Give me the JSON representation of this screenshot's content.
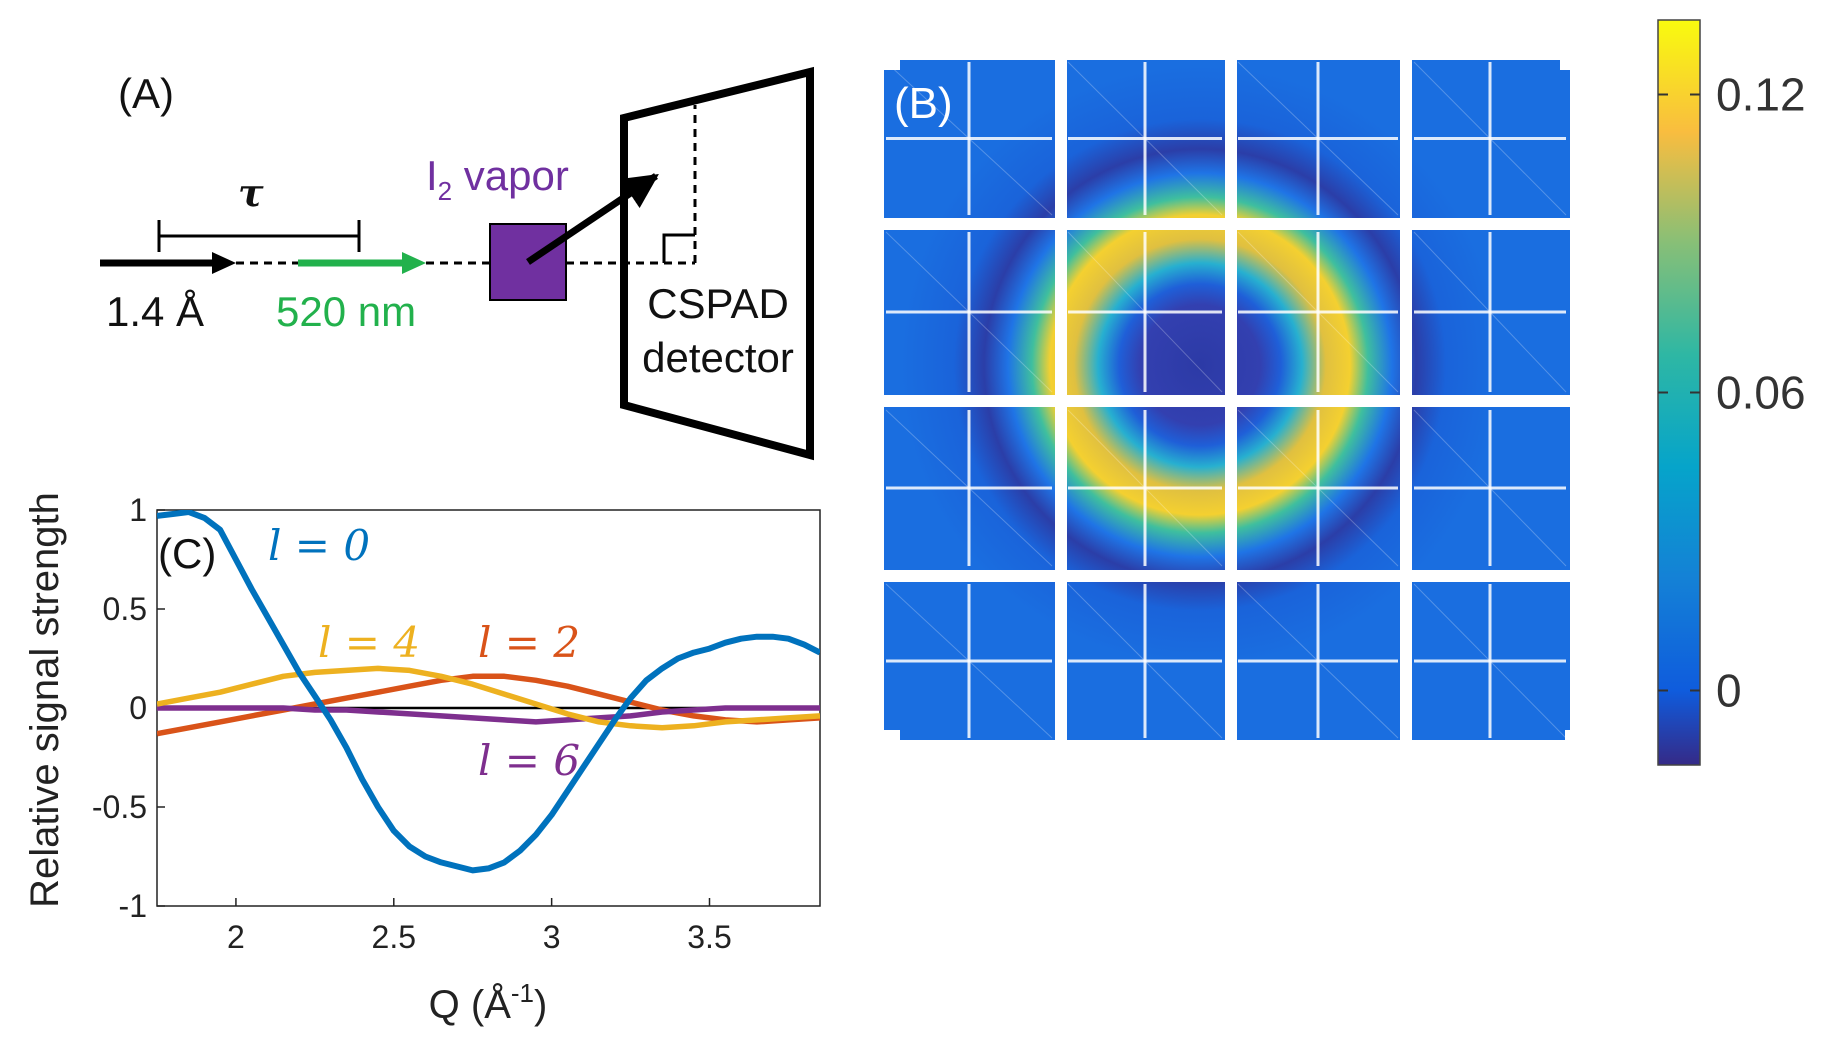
{
  "panels": {
    "a": {
      "label": "(A)",
      "tau": "τ",
      "xray": "1.4 Å",
      "laser": "520 nm",
      "sample_main": "I",
      "sample_sub": "2",
      "sample_rest": " vapor",
      "detector_line1": "CSPAD",
      "detector_line2": "detector"
    },
    "b": {
      "label": "(B)",
      "colorbar_ticks": [
        {
          "value": 0.12,
          "label": "0.12"
        },
        {
          "value": 0.06,
          "label": "0.06"
        },
        {
          "value": 0,
          "label": "0"
        }
      ],
      "colorbar_range": [
        -0.015,
        0.135
      ]
    },
    "c": {
      "label": "(C)"
    }
  },
  "colors": {
    "xray_arrow": "#000000",
    "laser_arrow": "#22b14c",
    "sample": "#7030a0",
    "l0": "#0072bd",
    "l2": "#d95319",
    "l4": "#edb120",
    "l6": "#7e2f8e"
  },
  "chart_data": {
    "type": "line",
    "xlabel": "Q (Å-1)",
    "xlabel_main": "Q (Å",
    "xlabel_sup": "-1",
    "xlabel_end": ")",
    "ylabel": "Relative signal strength",
    "xlim": [
      1.75,
      3.85
    ],
    "ylim": [
      -1,
      1
    ],
    "xticks": [
      2,
      2.5,
      3,
      3.5
    ],
    "yticks": [
      1,
      0.5,
      0,
      -0.5,
      -1
    ],
    "xtick_labels": [
      "2",
      "2.5",
      "3",
      "3.5"
    ],
    "ytick_labels": [
      "1",
      "0.5",
      "0",
      "-0.5",
      "-1"
    ],
    "series": [
      {
        "name": "l = 0",
        "label": "l = 0",
        "color": "#0072bd",
        "x": [
          1.75,
          1.8,
          1.85,
          1.9,
          1.95,
          2.0,
          2.05,
          2.1,
          2.15,
          2.2,
          2.25,
          2.3,
          2.35,
          2.4,
          2.45,
          2.5,
          2.55,
          2.6,
          2.65,
          2.7,
          2.75,
          2.8,
          2.85,
          2.9,
          2.95,
          3.0,
          3.05,
          3.1,
          3.15,
          3.2,
          3.25,
          3.3,
          3.35,
          3.4,
          3.45,
          3.5,
          3.55,
          3.6,
          3.65,
          3.7,
          3.75,
          3.8,
          3.85
        ],
        "y": [
          0.97,
          0.98,
          0.99,
          0.96,
          0.9,
          0.75,
          0.6,
          0.46,
          0.32,
          0.18,
          0.06,
          -0.06,
          -0.2,
          -0.36,
          -0.5,
          -0.62,
          -0.7,
          -0.75,
          -0.78,
          -0.8,
          -0.82,
          -0.81,
          -0.78,
          -0.72,
          -0.64,
          -0.54,
          -0.42,
          -0.3,
          -0.18,
          -0.06,
          0.05,
          0.14,
          0.2,
          0.25,
          0.28,
          0.3,
          0.33,
          0.35,
          0.36,
          0.36,
          0.35,
          0.32,
          0.28
        ]
      },
      {
        "name": "l = 2",
        "label": "l = 2",
        "color": "#d95319",
        "x": [
          1.75,
          1.85,
          1.95,
          2.05,
          2.15,
          2.25,
          2.35,
          2.45,
          2.55,
          2.65,
          2.75,
          2.85,
          2.95,
          3.05,
          3.15,
          3.25,
          3.35,
          3.45,
          3.55,
          3.65,
          3.75,
          3.85
        ],
        "y": [
          -0.13,
          -0.1,
          -0.07,
          -0.04,
          -0.01,
          0.02,
          0.05,
          0.08,
          0.11,
          0.14,
          0.16,
          0.16,
          0.14,
          0.11,
          0.07,
          0.03,
          -0.01,
          -0.04,
          -0.06,
          -0.07,
          -0.06,
          -0.05
        ]
      },
      {
        "name": "l = 4",
        "label": "l = 4",
        "color": "#edb120",
        "x": [
          1.75,
          1.85,
          1.95,
          2.05,
          2.15,
          2.25,
          2.35,
          2.45,
          2.55,
          2.65,
          2.75,
          2.85,
          2.95,
          3.05,
          3.15,
          3.25,
          3.35,
          3.45,
          3.55,
          3.65,
          3.75,
          3.85
        ],
        "y": [
          0.02,
          0.05,
          0.08,
          0.12,
          0.16,
          0.18,
          0.19,
          0.2,
          0.19,
          0.16,
          0.12,
          0.07,
          0.02,
          -0.03,
          -0.07,
          -0.09,
          -0.1,
          -0.09,
          -0.07,
          -0.06,
          -0.05,
          -0.04
        ]
      },
      {
        "name": "l = 6",
        "label": "l = 6",
        "color": "#7e2f8e",
        "x": [
          1.75,
          1.85,
          1.95,
          2.05,
          2.15,
          2.25,
          2.35,
          2.45,
          2.55,
          2.65,
          2.75,
          2.85,
          2.95,
          3.05,
          3.15,
          3.25,
          3.35,
          3.45,
          3.55,
          3.65,
          3.75,
          3.85
        ],
        "y": [
          0.0,
          0.0,
          0.0,
          0.0,
          0.0,
          -0.01,
          -0.01,
          -0.02,
          -0.03,
          -0.04,
          -0.05,
          -0.06,
          -0.07,
          -0.06,
          -0.05,
          -0.04,
          -0.02,
          -0.01,
          0.0,
          0.0,
          0.0,
          0.0
        ]
      }
    ]
  }
}
